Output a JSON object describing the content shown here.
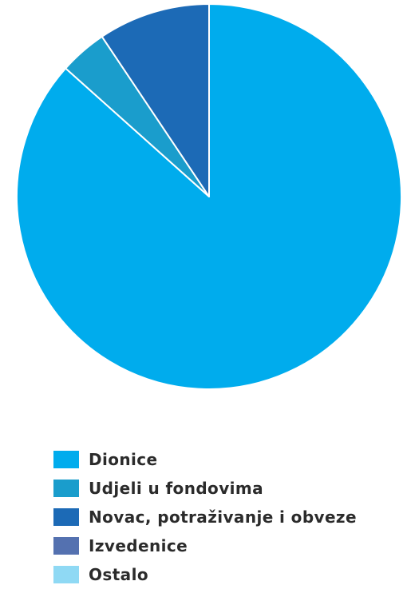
{
  "chart_data": {
    "type": "pie",
    "slices": [
      {
        "name": "Dionice",
        "value": 86.6,
        "color": "#00aced"
      },
      {
        "name": "Udjeli u fondovima",
        "value": 4.0,
        "color": "#1a9dcc"
      },
      {
        "name": "Novac, potraživanje i obveze",
        "value": 9.4,
        "color": "#1c6ab6"
      },
      {
        "name": "Izvedenice",
        "value": 0,
        "color": "#5471b0"
      },
      {
        "name": "Ostalo",
        "value": 0,
        "color": "#8fd9f4"
      }
    ],
    "legend_placement": "bottom-left",
    "start_angle": "12 o'clock",
    "direction": "clockwise"
  }
}
